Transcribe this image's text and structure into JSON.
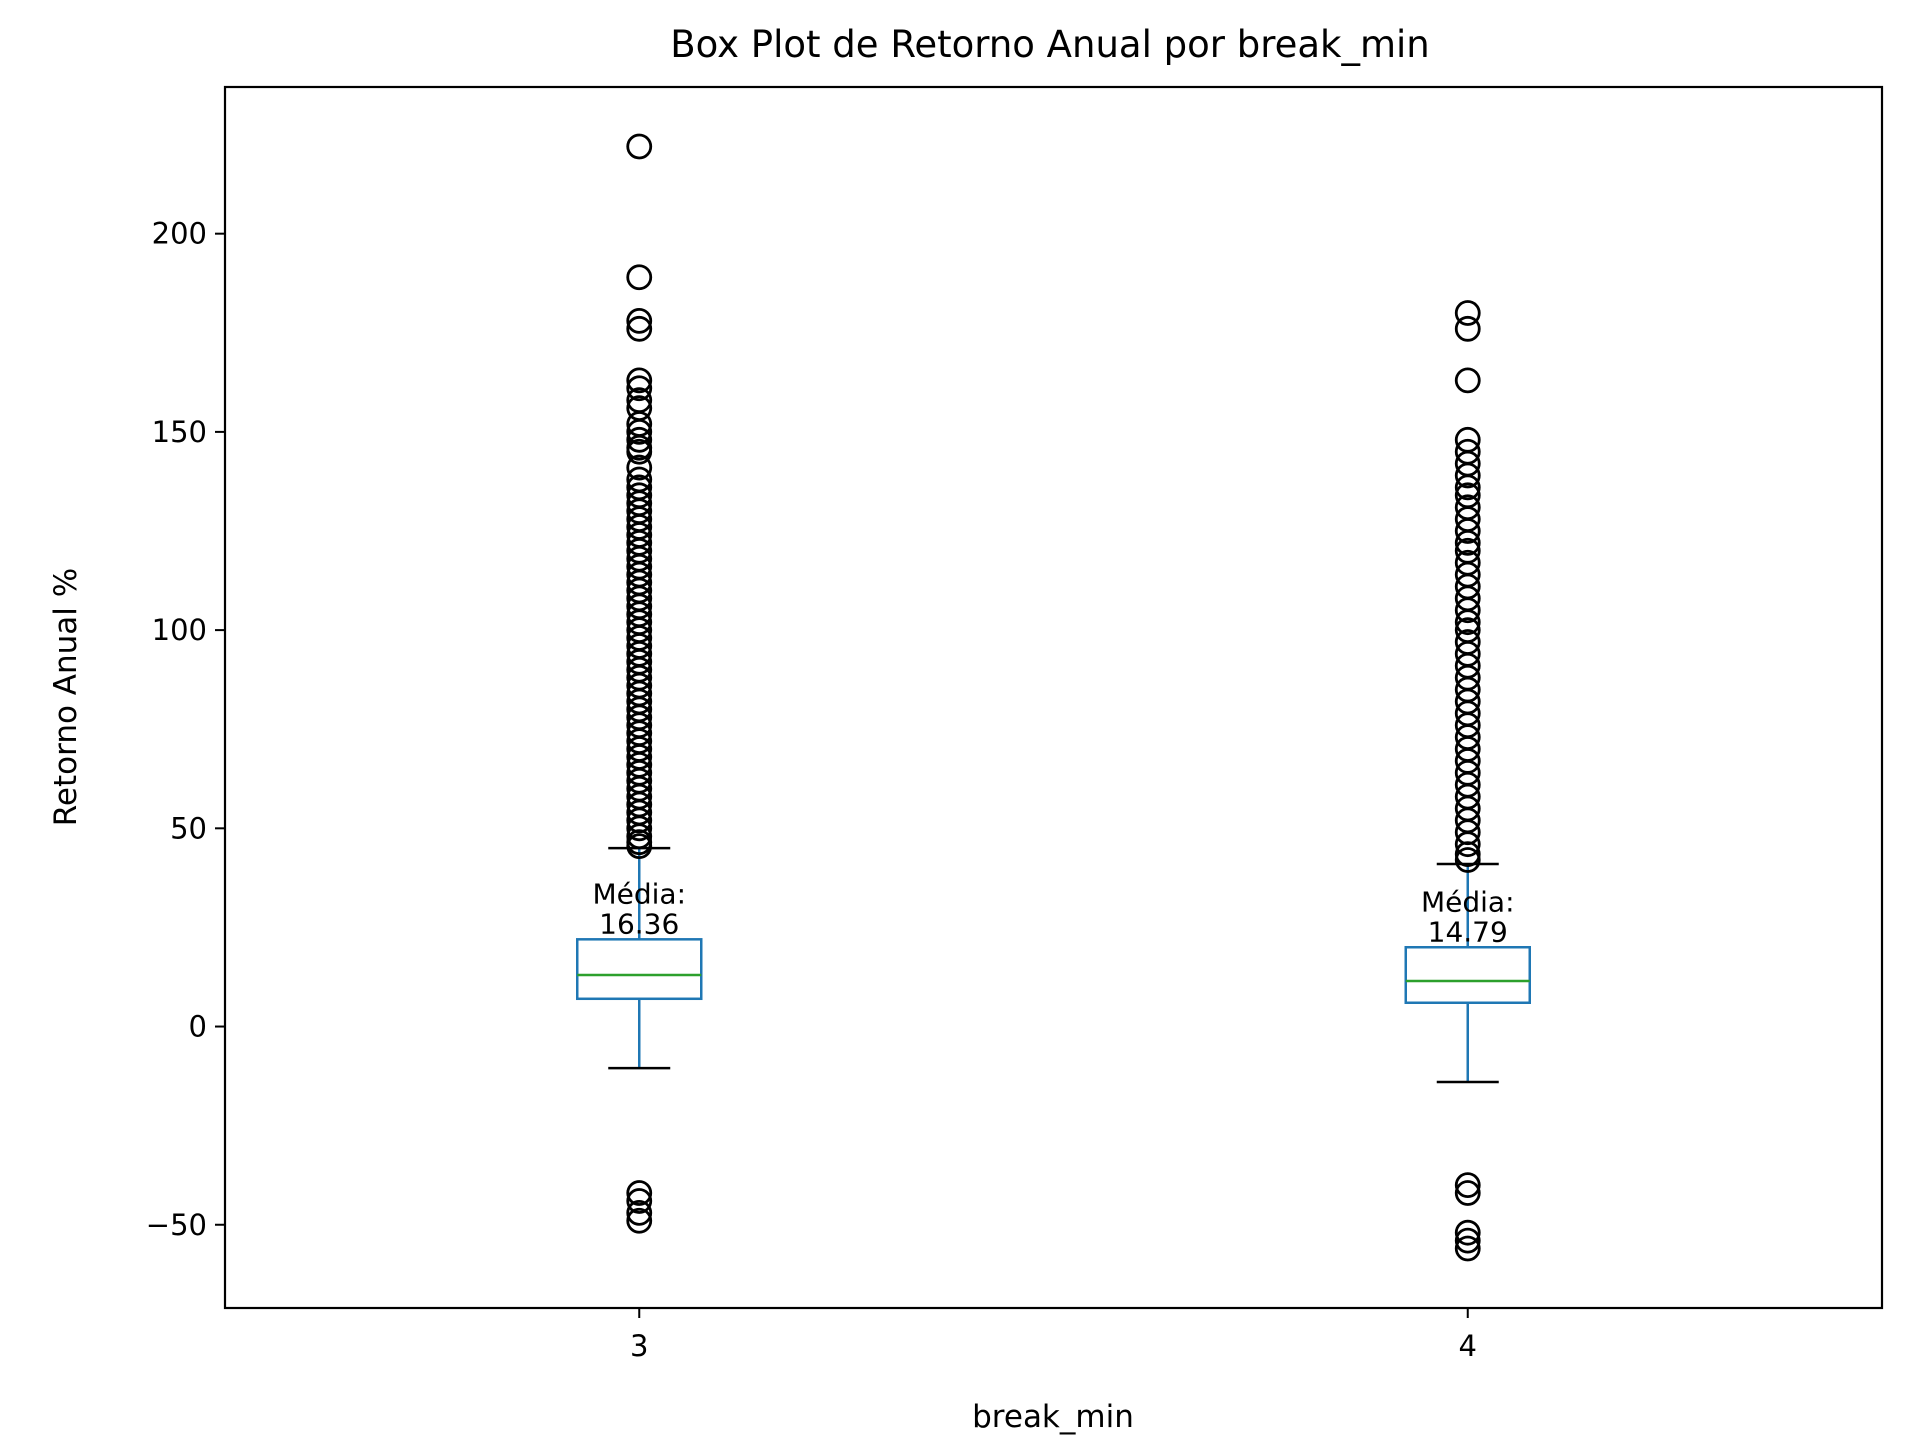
{
  "chart_data": {
    "type": "box",
    "title": "Box Plot de Retorno Anual por break_min",
    "xlabel": "break_min",
    "ylabel": "Retorno Anual %",
    "ylim": [
      -71,
      237
    ],
    "yticks": [
      -50,
      0,
      50,
      100,
      150,
      200
    ],
    "grid": false,
    "colors": {
      "box": "#1f77b4",
      "median": "#2ca02c",
      "whisker_cap": "#000000",
      "outlier": "#000000"
    },
    "categories": [
      "3",
      "4"
    ],
    "boxes": [
      {
        "category": "3",
        "q1": 7,
        "median": 13,
        "q3": 22,
        "whisker_low": -10.5,
        "whisker_high": 45,
        "mean": 16.36,
        "mean_label": "Média:",
        "mean_value": "16.36",
        "outliers": [
          222,
          189,
          178,
          176,
          163,
          161,
          158,
          156,
          152,
          150,
          148,
          146,
          145,
          141,
          138,
          136,
          134,
          132,
          130,
          128,
          126,
          124,
          122,
          120,
          118,
          116,
          114,
          112,
          110,
          108,
          106,
          104,
          102,
          100,
          98,
          96,
          94,
          92,
          90,
          88,
          86,
          84,
          82,
          80,
          78,
          76,
          74,
          72,
          70,
          68,
          66,
          64,
          62,
          60,
          58,
          56,
          54,
          52,
          50,
          48,
          46.5,
          45.5,
          -42,
          -44,
          -47,
          -49
        ]
      },
      {
        "category": "4",
        "q1": 6,
        "median": 11.5,
        "q3": 20,
        "whisker_low": -14,
        "whisker_high": 41,
        "mean": 14.79,
        "mean_label": "Média:",
        "mean_value": "14.79",
        "outliers": [
          180,
          176,
          163,
          148,
          145,
          142,
          139,
          136,
          134,
          131,
          128,
          125,
          122,
          120,
          117,
          114,
          111,
          108,
          105,
          102,
          100,
          97,
          94,
          91,
          88,
          85,
          82,
          79,
          76,
          73,
          70,
          67,
          64,
          61,
          58,
          55,
          52,
          49,
          46,
          43.5,
          42,
          -40,
          -42,
          -52,
          -54,
          -56
        ]
      }
    ]
  }
}
